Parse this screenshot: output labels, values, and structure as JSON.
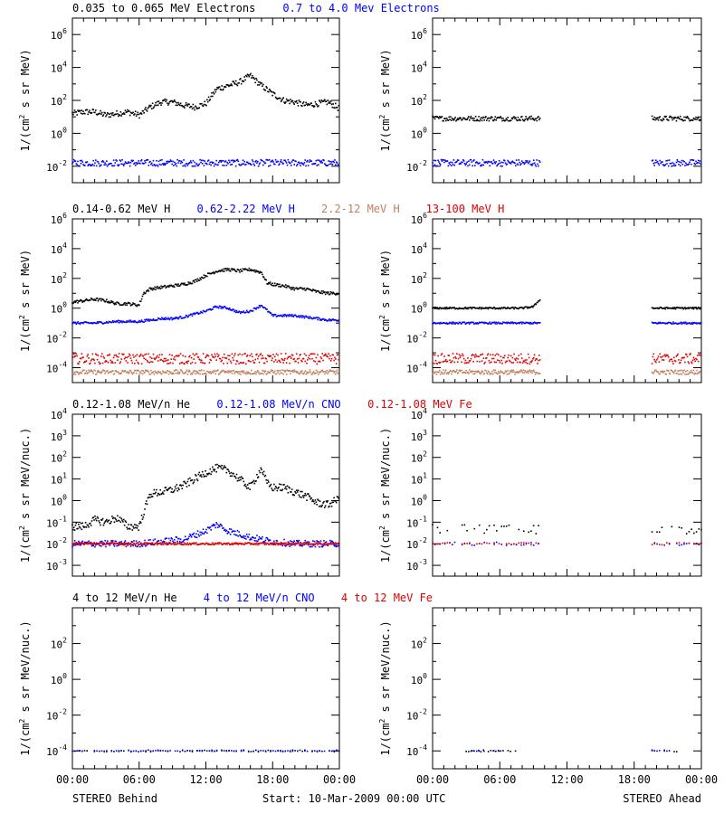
{
  "chart_data": {
    "type": "scatter",
    "footer": {
      "left": "STEREO Behind",
      "center": "Start: 10-Mar-2009 00:00 UTC",
      "right": "STEREO Ahead"
    },
    "colors": {
      "black": "#000000",
      "blue": "#0000ff",
      "tan": "#c08060",
      "red": "#e00000"
    },
    "x_tick_labels": [
      "00:00",
      "06:00",
      "12:00",
      "18:00",
      "00:00"
    ],
    "rows": [
      {
        "id": "electrons",
        "ylabel_text": "1/(cm",
        "ylabel_sup": "2",
        "ylabel_tail": " s sr MeV)",
        "scale": "log",
        "ylim": [
          -3,
          7
        ],
        "ticks": [
          -2,
          0,
          2,
          4,
          6
        ],
        "tick_labels": [
          {
            "base": "10",
            "exp": "-2"
          },
          {
            "base": "10",
            "exp": "0"
          },
          {
            "base": "10",
            "exp": "2"
          },
          {
            "base": "10",
            "exp": "4"
          },
          {
            "base": "10",
            "exp": "6"
          }
        ],
        "legend": [
          {
            "text": "0.035 to 0.065 MeV Electrons",
            "color": "black"
          },
          {
            "text": "0.7 to 4.0 Mev Electrons",
            "color": "blue"
          }
        ],
        "series": [
          {
            "name": "0.035 to 0.065 MeV Electrons",
            "color": "black",
            "behind": {
              "x": [
                0,
                1,
                2,
                3,
                4,
                5,
                6,
                7,
                8,
                9,
                10,
                11,
                12,
                13,
                14,
                15,
                16,
                17,
                18,
                19,
                20,
                21,
                22,
                23,
                24
              ],
              "log_y": [
                1.2,
                1.3,
                1.3,
                1.1,
                1.2,
                1.3,
                1.1,
                1.6,
                1.9,
                1.9,
                1.7,
                1.6,
                1.8,
                2.7,
                2.9,
                3.1,
                3.5,
                2.9,
                2.4,
                2.0,
                1.9,
                1.7,
                1.8,
                1.9,
                1.5
              ],
              "jitter": 0.18
            },
            "ahead": {
              "x": [
                0,
                2,
                4,
                6,
                8,
                9.6,
                19.6,
                21,
                22.5,
                24
              ],
              "log_y": [
                0.9,
                0.9,
                0.9,
                0.9,
                0.9,
                0.9,
                0.9,
                0.9,
                0.9,
                0.9
              ],
              "jitter": 0.15
            },
            "ahead_segments": [
              [
                0,
                9.6
              ],
              [
                19.6,
                24
              ]
            ]
          },
          {
            "name": "0.7 to 4.0 Mev Electrons",
            "color": "blue",
            "behind": {
              "x": [
                0,
                24
              ],
              "log_y": [
                -1.8,
                -1.8
              ],
              "jitter": 0.2
            },
            "ahead": {
              "x": [
                0,
                24
              ],
              "log_y": [
                -1.8,
                -1.8
              ],
              "jitter": 0.2
            },
            "ahead_segments": [
              [
                0,
                9.6
              ],
              [
                19.6,
                24
              ]
            ]
          }
        ]
      },
      {
        "id": "protons",
        "ylabel_text": "1/(cm",
        "ylabel_sup": "2",
        "ylabel_tail": " s sr MeV)",
        "scale": "log",
        "ylim": [
          -5,
          6
        ],
        "ticks": [
          -4,
          -2,
          0,
          2,
          4,
          6
        ],
        "tick_labels": [
          {
            "base": "10",
            "exp": "-4"
          },
          {
            "base": "10",
            "exp": "-2"
          },
          {
            "base": "10",
            "exp": "0"
          },
          {
            "base": "10",
            "exp": "2"
          },
          {
            "base": "10",
            "exp": "4"
          },
          {
            "base": "10",
            "exp": "6"
          }
        ],
        "legend": [
          {
            "text": "0.14-0.62 MeV H",
            "color": "black"
          },
          {
            "text": "0.62-2.22 MeV H",
            "color": "blue"
          },
          {
            "text": "2.2-12 MeV H",
            "color": "tan"
          },
          {
            "text": "13-100 MeV H",
            "color": "red"
          }
        ],
        "series": [
          {
            "name": "0.14-0.62 MeV H",
            "color": "black",
            "behind": {
              "x": [
                0,
                1,
                2,
                3,
                4,
                5,
                6,
                6.4,
                7,
                8,
                9,
                10,
                11,
                12,
                13,
                14,
                15,
                16,
                17,
                17.5,
                18,
                19,
                20,
                21,
                22,
                23,
                24
              ],
              "log_y": [
                0.4,
                0.5,
                0.6,
                0.5,
                0.3,
                0.3,
                0.2,
                1.0,
                1.3,
                1.4,
                1.5,
                1.6,
                1.8,
                2.2,
                2.5,
                2.6,
                2.5,
                2.6,
                2.4,
                1.7,
                1.6,
                1.5,
                1.3,
                1.3,
                1.1,
                1.0,
                1.0
              ],
              "jitter": 0.1
            },
            "ahead": {
              "x": [
                0,
                2,
                4,
                6,
                8,
                9,
                9.6,
                19.6,
                22,
                24
              ],
              "log_y": [
                0.0,
                0.0,
                0.0,
                0.0,
                0.0,
                0.1,
                0.6,
                0.0,
                0.0,
                0.0
              ],
              "jitter": 0.06
            },
            "ahead_segments": [
              [
                0,
                9.6
              ],
              [
                19.6,
                24
              ]
            ]
          },
          {
            "name": "0.62-2.22 MeV H",
            "color": "blue",
            "behind": {
              "x": [
                0,
                2,
                4,
                6,
                7,
                8,
                9,
                10,
                11,
                12,
                13,
                14,
                15,
                16,
                17,
                18,
                19,
                20,
                21,
                22,
                23,
                24
              ],
              "log_y": [
                -1.0,
                -1.0,
                -0.9,
                -0.9,
                -0.8,
                -0.7,
                -0.7,
                -0.6,
                -0.4,
                -0.2,
                0.1,
                0.0,
                -0.3,
                -0.2,
                0.2,
                -0.5,
                -0.5,
                -0.5,
                -0.6,
                -0.7,
                -0.8,
                -0.8
              ],
              "jitter": 0.08
            },
            "ahead": {
              "x": [
                0,
                24
              ],
              "log_y": [
                -1.0,
                -1.0
              ],
              "jitter": 0.06
            },
            "ahead_segments": [
              [
                0,
                9.6
              ],
              [
                19.6,
                24
              ]
            ]
          },
          {
            "name": "2.2-12 MeV H",
            "color": "tan",
            "behind": {
              "x": [
                0,
                24
              ],
              "log_y": [
                -4.3,
                -4.3
              ],
              "jitter": 0.15
            },
            "ahead": {
              "x": [
                0,
                24
              ],
              "log_y": [
                -4.3,
                -4.3
              ],
              "jitter": 0.15
            },
            "ahead_segments": [
              [
                0,
                9.6
              ],
              [
                19.6,
                24
              ]
            ]
          },
          {
            "name": "13-100 MeV H",
            "color": "red",
            "behind": {
              "x": [
                0,
                24
              ],
              "log_y": [
                -3.4,
                -3.4
              ],
              "jitter": 0.35
            },
            "ahead": {
              "x": [
                0,
                24
              ],
              "log_y": [
                -3.4,
                -3.4
              ],
              "jitter": 0.35
            },
            "ahead_segments": [
              [
                0,
                9.6
              ],
              [
                19.6,
                24
              ]
            ]
          }
        ]
      },
      {
        "id": "heavy-low",
        "ylabel_text": "1/(cm",
        "ylabel_sup": "2",
        "ylabel_tail": " s sr MeV/nuc.)",
        "scale": "log",
        "ylim": [
          -3.5,
          4
        ],
        "ticks": [
          -3,
          -2,
          -1,
          0,
          1,
          2,
          3,
          4
        ],
        "tick_labels": [
          {
            "base": "10",
            "exp": "-3"
          },
          {
            "base": "10",
            "exp": "-2"
          },
          {
            "base": "10",
            "exp": "-1"
          },
          {
            "base": "10",
            "exp": "0"
          },
          {
            "base": "10",
            "exp": "1"
          },
          {
            "base": "10",
            "exp": "2"
          },
          {
            "base": "10",
            "exp": "3"
          },
          {
            "base": "10",
            "exp": "4"
          }
        ],
        "legend": [
          {
            "text": "0.12-1.08 MeV/n He",
            "color": "black"
          },
          {
            "text": "0.12-1.08 MeV/n CNO",
            "color": "blue"
          },
          {
            "text": "0.12-1.08 MeV Fe",
            "color": "red"
          }
        ],
        "series": [
          {
            "name": "0.12-1.08 MeV/n He",
            "color": "black",
            "behind": {
              "x": [
                0,
                1,
                2,
                3,
                4,
                5,
                6,
                6.5,
                7,
                8,
                9,
                10,
                11,
                12,
                13,
                14,
                15,
                16,
                17,
                17.5,
                18,
                19,
                20,
                21,
                22,
                23,
                24
              ],
              "log_y": [
                -1.2,
                -1.2,
                -0.9,
                -1.0,
                -0.8,
                -1.2,
                -1.2,
                -0.4,
                0.3,
                0.4,
                0.5,
                0.7,
                1.0,
                1.3,
                1.5,
                1.4,
                1.0,
                0.6,
                1.5,
                0.8,
                0.6,
                0.6,
                0.4,
                0.2,
                -0.1,
                -0.2,
                0.1
              ],
              "jitter": 0.18
            },
            "ahead": {
              "x": [
                0,
                24
              ],
              "log_y": [
                -1.3,
                -1.3
              ],
              "jitter": 0.25
            },
            "ahead_segments": [
              [
                0,
                9.6
              ],
              [
                19.6,
                24
              ]
            ]
          },
          {
            "name": "0.12-1.08 MeV/n CNO",
            "color": "blue",
            "behind": {
              "x": [
                0,
                6,
                8,
                10,
                12,
                13,
                14,
                16,
                18,
                20,
                24
              ],
              "log_y": [
                -2.0,
                -2.0,
                -1.9,
                -1.8,
                -1.4,
                -1.1,
                -1.4,
                -1.7,
                -1.9,
                -2.0,
                -2.0
              ],
              "jitter": 0.15
            },
            "ahead": {
              "x": [
                0,
                24
              ],
              "log_y": [
                -2.0,
                -2.0
              ],
              "jitter": 0.08
            },
            "ahead_segments": [
              [
                0,
                9.6
              ],
              [
                19.6,
                24
              ]
            ]
          },
          {
            "name": "0.12-1.08 MeV Fe",
            "color": "red",
            "behind": {
              "x": [
                0,
                24
              ],
              "log_y": [
                -2.0,
                -2.0
              ],
              "jitter": 0.05
            },
            "ahead": {
              "x": [
                0,
                24
              ],
              "log_y": [
                -2.0,
                -2.0
              ],
              "jitter": 0.05
            },
            "ahead_segments": [
              [
                0,
                9.6
              ],
              [
                19.6,
                24
              ]
            ]
          }
        ]
      },
      {
        "id": "heavy-high",
        "ylabel_text": "1/(cm",
        "ylabel_sup": "2",
        "ylabel_tail": " s sr MeV/nuc.)",
        "scale": "log",
        "ylim": [
          -5,
          4
        ],
        "ticks": [
          -4,
          -2,
          0,
          2
        ],
        "tick_labels": [
          {
            "base": "10",
            "exp": "-4"
          },
          {
            "base": "10",
            "exp": "-2"
          },
          {
            "base": "10",
            "exp": "0"
          },
          {
            "base": "10",
            "exp": "2"
          }
        ],
        "legend": [
          {
            "text": "4 to 12 MeV/n He",
            "color": "black"
          },
          {
            "text": "4 to 12 MeV/n CNO",
            "color": "blue"
          },
          {
            "text": "4 to 12 MeV Fe",
            "color": "red"
          }
        ],
        "series": [
          {
            "name": "4 to 12 MeV/n He",
            "color": "black",
            "behind": {
              "x": [
                0,
                24
              ],
              "log_y": [
                -4.0,
                -4.0
              ],
              "jitter": 0.05
            },
            "ahead": {
              "x": [
                0,
                24
              ],
              "log_y": [
                -4.0,
                -4.0
              ],
              "jitter": 0.05
            },
            "ahead_segments": [
              [
                3,
                8
              ],
              [
                19.6,
                22
              ]
            ]
          },
          {
            "name": "4 to 12 MeV/n CNO",
            "color": "blue",
            "behind": {
              "x": [
                0,
                24
              ],
              "log_y": [
                -4.0,
                -4.0
              ],
              "jitter": 0.02
            },
            "ahead": {
              "x": [
                0,
                24
              ],
              "log_y": [
                -4.0,
                -4.0
              ],
              "jitter": 0.02
            },
            "ahead_segments": [
              [
                3.5,
                6
              ],
              [
                19.6,
                21
              ]
            ]
          }
        ]
      }
    ]
  }
}
